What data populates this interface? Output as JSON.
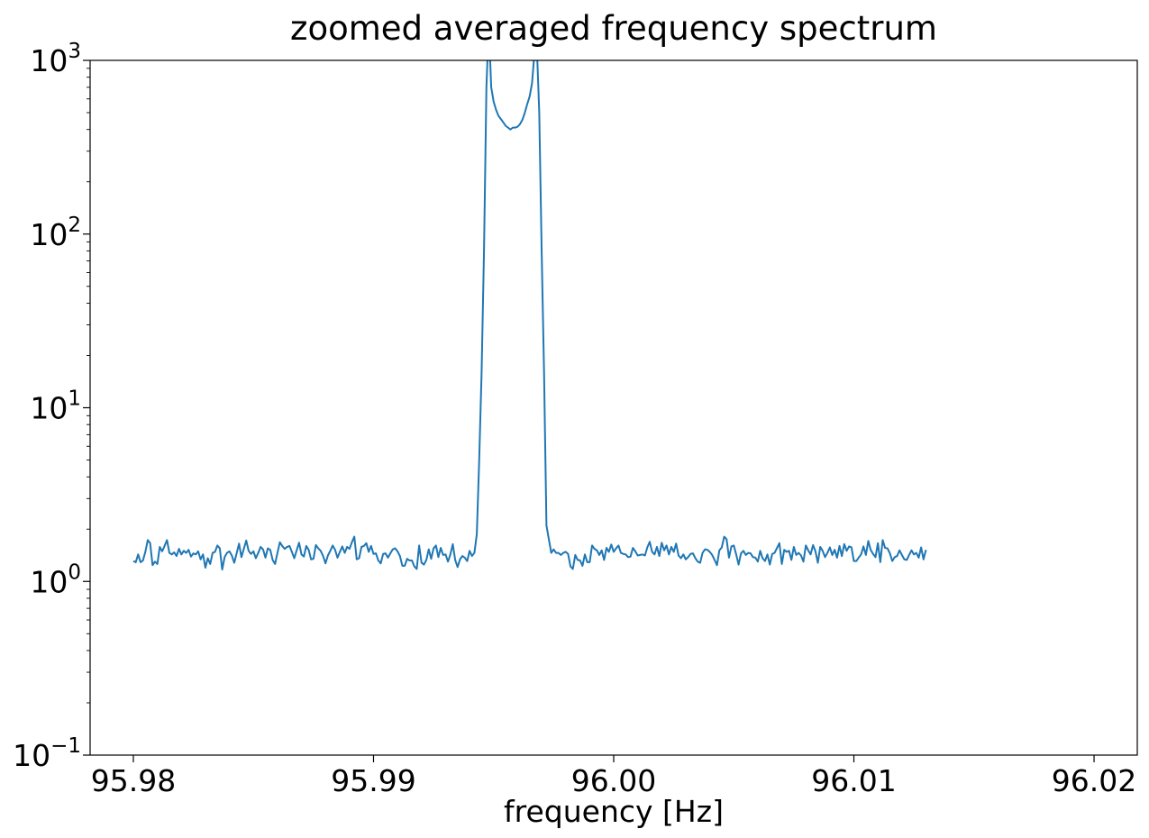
{
  "chart_data": {
    "type": "line",
    "title": "zoomed averaged frequency spectrum",
    "xlabel": "frequency [Hz]",
    "ylabel": "",
    "xlim": [
      95.9782,
      96.0218
    ],
    "ylim": [
      0.1,
      1000
    ],
    "yscale": "log",
    "grid": false,
    "line_color": "#1f77b4",
    "x_ticks": [
      {
        "value": 95.98,
        "label": "95.98"
      },
      {
        "value": 95.99,
        "label": "95.99"
      },
      {
        "value": 96.0,
        "label": "96.00"
      },
      {
        "value": 96.01,
        "label": "96.01"
      },
      {
        "value": 96.02,
        "label": "96.02"
      }
    ],
    "y_ticks": [
      {
        "value": 0.1,
        "base": "10",
        "exp": "−1"
      },
      {
        "value": 1,
        "base": "10",
        "exp": "0"
      },
      {
        "value": 10,
        "base": "10",
        "exp": "1"
      },
      {
        "value": 100,
        "base": "10",
        "exp": "2"
      },
      {
        "value": 1000,
        "base": "10",
        "exp": "3"
      }
    ],
    "series": [
      {
        "x_start": 95.98,
        "x_step": 0.0001,
        "y": [
          1.31,
          1.29,
          1.43,
          1.29,
          1.32,
          1.48,
          1.73,
          1.66,
          1.24,
          1.3,
          1.26,
          1.58,
          1.49,
          1.6,
          1.73,
          1.46,
          1.43,
          1.47,
          1.4,
          1.54,
          1.43,
          1.5,
          1.46,
          1.52,
          1.39,
          1.45,
          1.43,
          1.49,
          1.34,
          1.43,
          1.2,
          1.36,
          1.26,
          1.46,
          1.48,
          1.61,
          1.55,
          1.17,
          1.38,
          1.46,
          1.49,
          1.41,
          1.28,
          1.45,
          1.65,
          1.38,
          1.54,
          1.72,
          1.5,
          1.44,
          1.49,
          1.36,
          1.46,
          1.58,
          1.53,
          1.37,
          1.55,
          1.52,
          1.33,
          1.26,
          1.46,
          1.68,
          1.6,
          1.54,
          1.58,
          1.6,
          1.48,
          1.36,
          1.51,
          1.67,
          1.43,
          1.39,
          1.6,
          1.52,
          1.34,
          1.35,
          1.62,
          1.55,
          1.5,
          1.4,
          1.27,
          1.41,
          1.5,
          1.61,
          1.52,
          1.37,
          1.48,
          1.59,
          1.46,
          1.58,
          1.54,
          1.68,
          1.81,
          1.34,
          1.36,
          1.58,
          1.6,
          1.66,
          1.48,
          1.6,
          1.44,
          1.45,
          1.32,
          1.27,
          1.44,
          1.45,
          1.37,
          1.45,
          1.53,
          1.55,
          1.49,
          1.4,
          1.23,
          1.23,
          1.35,
          1.32,
          1.32,
          1.22,
          1.18,
          1.61,
          1.28,
          1.25,
          1.33,
          1.53,
          1.35,
          1.55,
          1.61,
          1.38,
          1.56,
          1.42,
          1.43,
          1.3,
          1.43,
          1.64,
          1.33,
          1.21,
          1.34,
          1.4,
          1.37,
          1.31,
          1.5,
          1.4,
          1.46,
          1.87,
          5.0,
          16.0,
          80.0,
          700,
          1600,
          700,
          580,
          520,
          480,
          460,
          440,
          420,
          410,
          400,
          410,
          410,
          415,
          430,
          455,
          500,
          560,
          620,
          740,
          1100,
          1200,
          500,
          80,
          16,
          2.1,
          1.75,
          1.46,
          1.53,
          1.46,
          1.46,
          1.42,
          1.46,
          1.48,
          1.44,
          1.22,
          1.18,
          1.42,
          1.33,
          1.32,
          1.23,
          1.43,
          1.29,
          1.29,
          1.61,
          1.54,
          1.51,
          1.42,
          1.51,
          1.33,
          1.56,
          1.48,
          1.63,
          1.48,
          1.55,
          1.61,
          1.46,
          1.44,
          1.43,
          1.38,
          1.39,
          1.56,
          1.49,
          1.41,
          1.42,
          1.43,
          1.41,
          1.57,
          1.69,
          1.48,
          1.43,
          1.58,
          1.4,
          1.67,
          1.51,
          1.61,
          1.43,
          1.58,
          1.48,
          1.65,
          1.41,
          1.36,
          1.43,
          1.34,
          1.38,
          1.44,
          1.45,
          1.36,
          1.3,
          1.28,
          1.46,
          1.53,
          1.52,
          1.48,
          1.42,
          1.33,
          1.24,
          1.51,
          1.57,
          1.81,
          1.75,
          1.37,
          1.59,
          1.61,
          1.43,
          1.25,
          1.45,
          1.5,
          1.42,
          1.46,
          1.45,
          1.38,
          1.37,
          1.3,
          1.5,
          1.36,
          1.31,
          1.43,
          1.25,
          1.44,
          1.46,
          1.56,
          1.66,
          1.26,
          1.52,
          1.48,
          1.5,
          1.33,
          1.58,
          1.42,
          1.46,
          1.41,
          1.3,
          1.61,
          1.51,
          1.43,
          1.62,
          1.49,
          1.28,
          1.58,
          1.5,
          1.38,
          1.46,
          1.57,
          1.42,
          1.52,
          1.37,
          1.6,
          1.4,
          1.64,
          1.5,
          1.59,
          1.57,
          1.31,
          1.31,
          1.37,
          1.43,
          1.59,
          1.42,
          1.71,
          1.52,
          1.44,
          1.38,
          1.66,
          1.29,
          1.73,
          1.56,
          1.55,
          1.45,
          1.31,
          1.38,
          1.4,
          1.51,
          1.42,
          1.34,
          1.33,
          1.42,
          1.51,
          1.43,
          1.46,
          1.37,
          1.57,
          1.34,
          1.52
        ]
      }
    ]
  }
}
